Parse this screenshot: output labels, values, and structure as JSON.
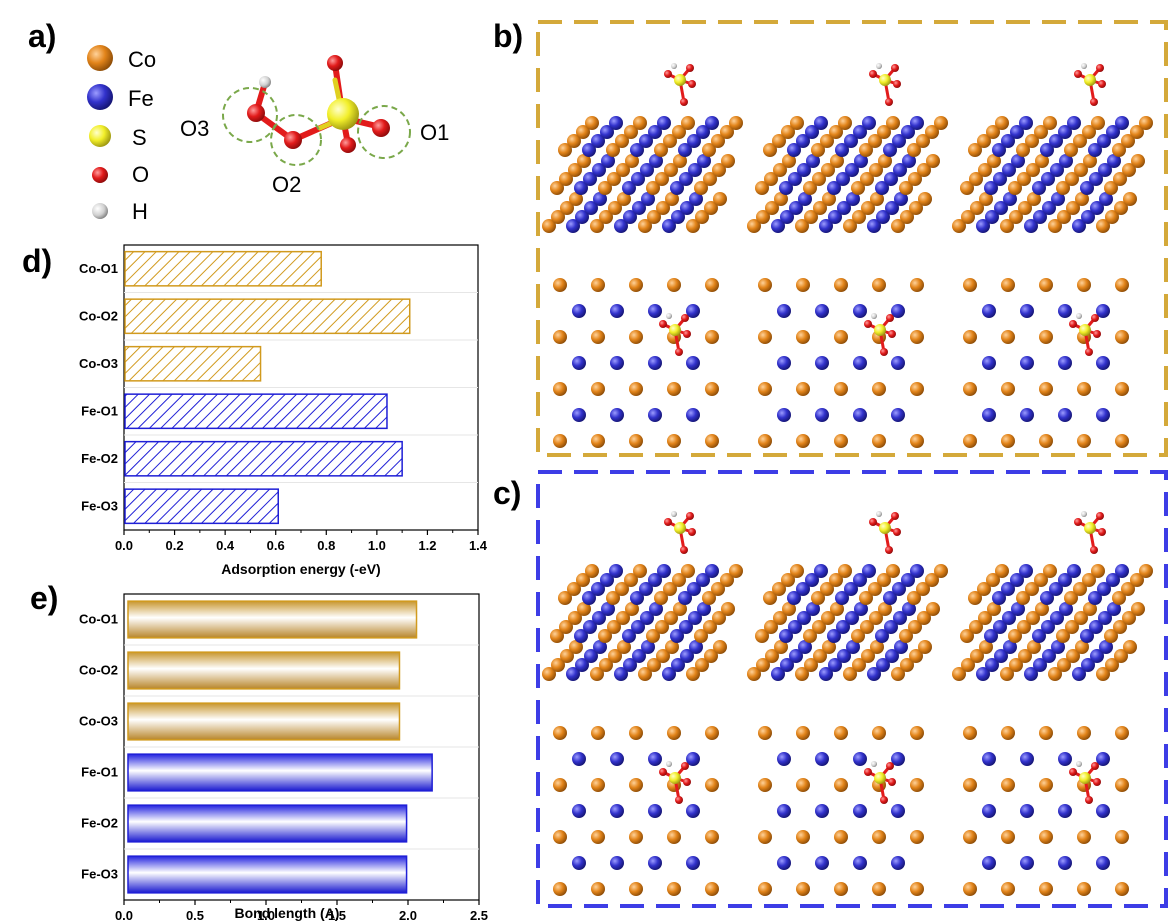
{
  "panels": {
    "a": "a)",
    "b": "b)",
    "c": "c)",
    "d": "d)",
    "e": "e)"
  },
  "legend": [
    {
      "label": "Co",
      "color": "#d9770f"
    },
    {
      "label": "Fe",
      "color": "#2b2bcc"
    },
    {
      "label": "S",
      "color": "#f2ef2a"
    },
    {
      "label": "O",
      "color": "#e21b1b"
    },
    {
      "label": "H",
      "color": "#cccccc"
    }
  ],
  "molecule_labels": {
    "o1": "O1",
    "o2": "O2",
    "o3": "O3"
  },
  "colors": {
    "co": "#d19a1e",
    "fe": "#1f1fd6",
    "b_frame": "#d4a93a",
    "c_frame": "#3d3de6"
  },
  "chart_data": [
    {
      "type": "bar",
      "orientation": "horizontal",
      "categories": [
        "Co-O1",
        "Co-O2",
        "Co-O3",
        "Fe-O1",
        "Fe-O2",
        "Fe-O3"
      ],
      "values": [
        0.78,
        1.13,
        0.54,
        1.04,
        1.1,
        0.61
      ],
      "xlabel": "Adsorption energy (-eV)",
      "xlim": [
        0,
        1.4
      ],
      "xticks": [
        "0.0",
        "0.2",
        "0.4",
        "0.6",
        "0.8",
        "1.0",
        "1.2",
        "1.4"
      ],
      "style": "hatched"
    },
    {
      "type": "bar",
      "orientation": "horizontal",
      "categories": [
        "Co-O1",
        "Co-O2",
        "Co-O3",
        "Fe-O1",
        "Fe-O2",
        "Fe-O3"
      ],
      "values": [
        2.06,
        1.94,
        1.94,
        2.17,
        1.99,
        1.99
      ],
      "xlabel": "Bond length (A)",
      "xlim": [
        0,
        2.5
      ],
      "xticks": [
        "0.0",
        "0.5",
        "1.0",
        "1.5",
        "2.0",
        "2.5"
      ],
      "style": "gradient"
    }
  ]
}
